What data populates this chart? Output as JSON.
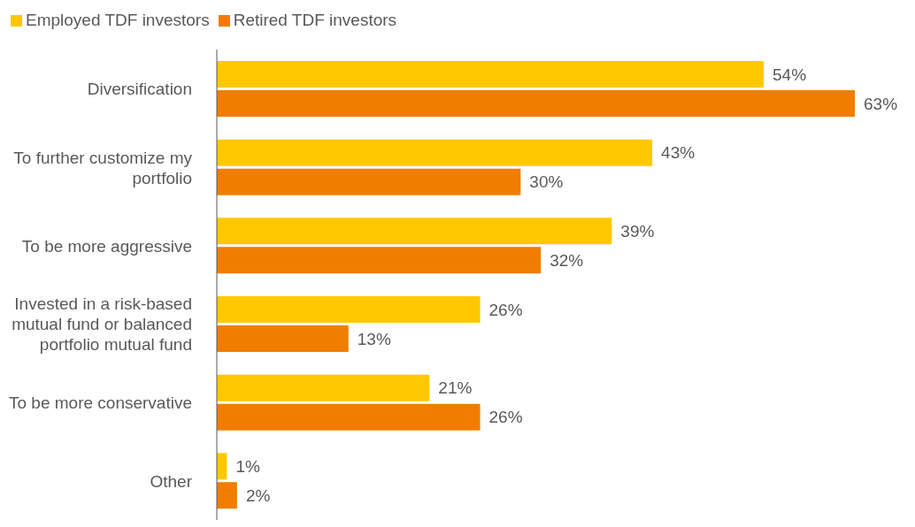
{
  "chart_data": {
    "type": "bar",
    "orientation": "horizontal",
    "categories": [
      "Diversification",
      "To further customize my portfolio",
      "To be more aggressive",
      "Invested in a risk-based mutual fund or balanced portfolio mutual fund",
      "To be more conservative",
      "Other"
    ],
    "series": [
      {
        "name": "Employed TDF investors",
        "color": "#ffc800",
        "values": [
          54,
          43,
          39,
          26,
          21,
          1
        ],
        "value_labels": [
          "54%",
          "43%",
          "39%",
          "26%",
          "21%",
          "1%"
        ]
      },
      {
        "name": "Retired TDF investors",
        "color": "#f07d00",
        "values": [
          63,
          30,
          32,
          13,
          26,
          2
        ],
        "value_labels": [
          "63%",
          "30%",
          "32%",
          "13%",
          "26%",
          "2%"
        ]
      }
    ],
    "legend": "top left"
  }
}
